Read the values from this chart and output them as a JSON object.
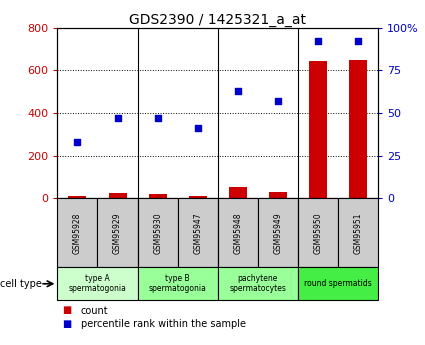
{
  "title": "GDS2390 / 1425321_a_at",
  "samples": [
    "GSM95928",
    "GSM95929",
    "GSM95930",
    "GSM95947",
    "GSM95948",
    "GSM95949",
    "GSM95950",
    "GSM95951"
  ],
  "counts": [
    10,
    25,
    22,
    12,
    55,
    30,
    645,
    648
  ],
  "percentile_ranks": [
    33,
    47,
    47,
    41,
    63,
    57,
    92,
    92
  ],
  "count_color": "#cc0000",
  "percentile_color": "#0000cc",
  "ylim_left": [
    0,
    800
  ],
  "ylim_right": [
    0,
    100
  ],
  "yticks_left": [
    0,
    200,
    400,
    600,
    800
  ],
  "yticks_right": [
    0,
    25,
    50,
    75,
    100
  ],
  "ytick_labels_right": [
    "0",
    "25",
    "50",
    "75",
    "100%"
  ],
  "cell_groups": [
    {
      "label": "type A\nspermatogonia",
      "indices": [
        0,
        1
      ],
      "color": "#ccffcc"
    },
    {
      "label": "type B\nspermatogonia",
      "indices": [
        2,
        3
      ],
      "color": "#99ff99"
    },
    {
      "label": "pachytene\nspermatocytes",
      "indices": [
        4,
        5
      ],
      "color": "#99ff99"
    },
    {
      "label": "round spermatids",
      "indices": [
        6,
        7
      ],
      "color": "#44ee44"
    }
  ],
  "cell_type_label": "cell type",
  "legend_count_label": "count",
  "legend_percentile_label": "percentile rank within the sample",
  "bar_width": 0.45,
  "tick_label_color_left": "#cc0000",
  "tick_label_color_right": "#0000cc",
  "sample_box_color": "#cccccc",
  "title_fontsize": 10,
  "axis_fontsize": 8,
  "label_fontsize": 7,
  "legend_fontsize": 7
}
